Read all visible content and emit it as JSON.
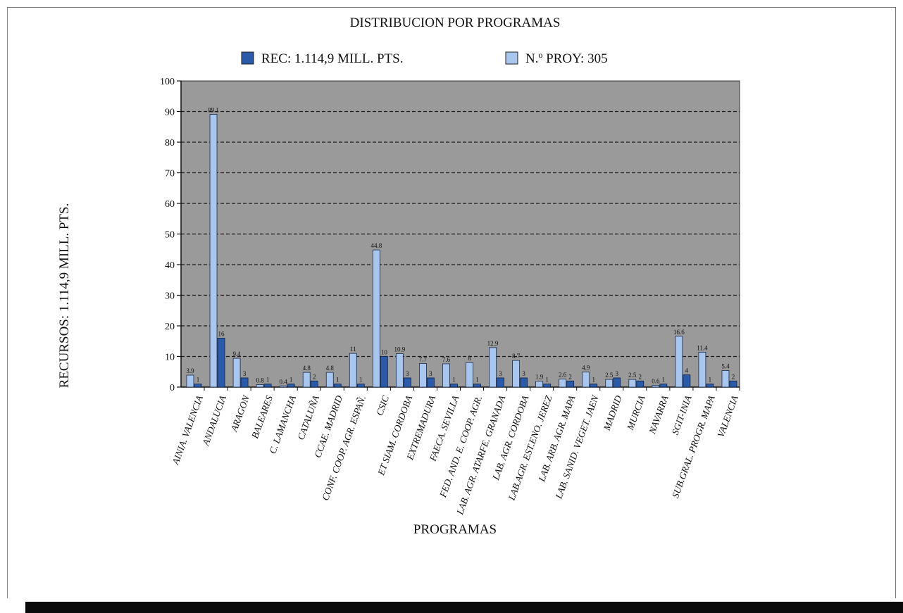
{
  "chart_data": {
    "type": "bar",
    "title": "DISTRIBUCION POR PROGRAMAS",
    "xlabel": "PROGRAMAS",
    "ylabel": "RECURSOS: 1.114,9 MILL. PTS.",
    "ylim": [
      0,
      100
    ],
    "yticks": [
      "0",
      "10",
      "20",
      "30",
      "40",
      "50",
      "60",
      "70",
      "80",
      "90",
      "100"
    ],
    "grid": true,
    "legend_position": "top",
    "plot_background": "#9a9a9a",
    "categories": [
      "AINIA. VALENCIA",
      "ANDALUCIA",
      "ARAGON",
      "BALEARES",
      "C. LAMANCHA",
      "CATALUÑA",
      "CCAE. MADRID",
      "CONF. COOP. AGR. ESPAÑ.",
      "CSIC",
      "ET SIAM. CORDOBA",
      "EXTREMADURA",
      "FAECA. SEVILLA",
      "FED. AND. E. COOP. AGR.",
      "LAB. AGR. ATARFE. GRANADA",
      "LAB. AGR. CORDOBA",
      "LAB.AGR. EST.ENO. JEREZ",
      "LAB. ARB. AGR. MAPA",
      "LAB. SANID. VEGET. JAEN",
      "MADRID",
      "MURCIA",
      "NAVARRA",
      "SGIT-INIA",
      "SUB.GRAL. PROGR. MAPA",
      "VALENCIA"
    ],
    "series": [
      {
        "name": "REC: 1.114,9 MILL. PTS.",
        "color": "#2a5aa8",
        "values": [
          3.9,
          89.1,
          9.4,
          0.8,
          0.4,
          4.8,
          4.8,
          11,
          44.8,
          10.9,
          7.7,
          7.6,
          8,
          12.9,
          8.7,
          1.9,
          2.6,
          4.9,
          2.5,
          2.5,
          0.6,
          16.6,
          11.4,
          5.4
        ],
        "labels": [
          "3.9",
          "89.1",
          "9.4",
          "0.8",
          "0.4",
          "4.8",
          "4.8",
          "11",
          "44.8",
          "10.9",
          "7.7",
          "7.6",
          "8",
          "12.9",
          "8.7",
          "1.9",
          "2.6",
          "4.9",
          "2.5",
          "2.5",
          "0.6",
          "16.6",
          "11.4",
          "5.4"
        ]
      },
      {
        "name": "N.º PROY: 305",
        "color": "#a9c6ee",
        "values": [
          1,
          16,
          3,
          1,
          1,
          2,
          1,
          1,
          10,
          3,
          3,
          1,
          1,
          3,
          3,
          1,
          2,
          1,
          3,
          2,
          1,
          4,
          1,
          2
        ],
        "labels": [
          "1",
          "16",
          "3",
          "1",
          "1",
          "2",
          "1",
          "1",
          "10",
          "3",
          "3",
          "1",
          "1",
          "3",
          "3",
          "1",
          "2",
          "1",
          "3",
          "2",
          "1",
          "4",
          "1",
          "2"
        ]
      }
    ]
  }
}
